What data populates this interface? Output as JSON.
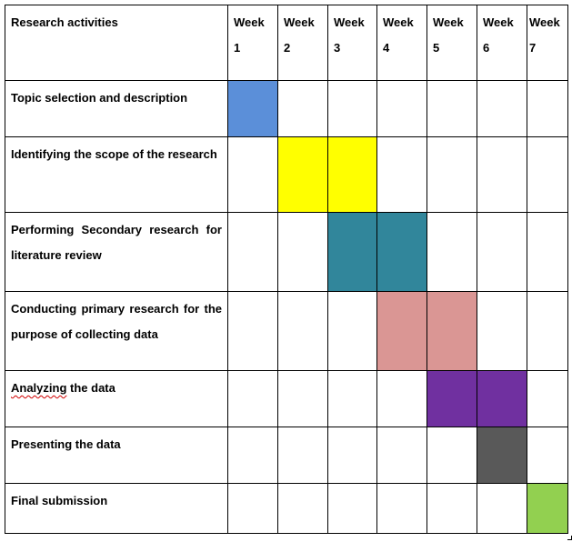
{
  "header": {
    "activity_label": "Research activities",
    "weeks": [
      {
        "word": "Week",
        "num": "1"
      },
      {
        "word": "Week",
        "num": "2"
      },
      {
        "word": "Week",
        "num": "3"
      },
      {
        "word": "Week",
        "num": "4"
      },
      {
        "word": "Week",
        "num": "5"
      },
      {
        "word": "Week",
        "num": "6"
      },
      {
        "word": "Week",
        "num": "7"
      }
    ]
  },
  "rows": [
    {
      "label": "Topic selection and description",
      "weeks": [
        1
      ],
      "color": "#5b8fd9"
    },
    {
      "label": "Identifying the scope of the research",
      "weeks": [
        2,
        3
      ],
      "color": "#ffff00"
    },
    {
      "label": "Performing Secondary research for literature review",
      "weeks": [
        3,
        4
      ],
      "color": "#31869b"
    },
    {
      "label": "Conducting primary research for the purpose of collecting data",
      "weeks": [
        4,
        5
      ],
      "color": "#da9694"
    },
    {
      "label_parts": [
        "Analyzing",
        " the data"
      ],
      "weeks": [
        5,
        6
      ],
      "color": "#7030a0"
    },
    {
      "label": "Presenting the data",
      "weeks": [
        6
      ],
      "color": "#595959"
    },
    {
      "label": "Final submission",
      "weeks": [
        7
      ],
      "color": "#92d050"
    }
  ]
}
